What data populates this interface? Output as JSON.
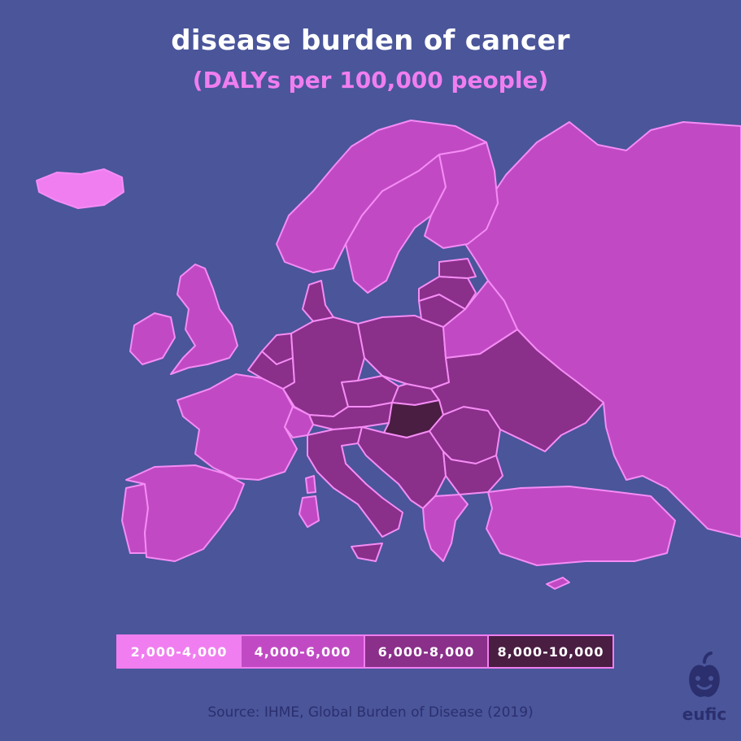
{
  "title": "disease burden of cancer",
  "subtitle": "(DALYs per 100,000 people)",
  "colors": {
    "background": "#4a559a",
    "border": "#f58cf5",
    "band_2000_4000": "#f07ef0",
    "band_4000_6000": "#c14ac4",
    "band_6000_8000": "#8a2f8a",
    "band_8000_10000": "#4a1d42"
  },
  "legend": [
    {
      "label": "2,000-4,000",
      "color": "#f07ef0"
    },
    {
      "label": "4,000-6,000",
      "color": "#c14ac4"
    },
    {
      "label": "6,000-8,000",
      "color": "#8a2f8a"
    },
    {
      "label": "8,000-10,000",
      "color": "#4a1d42"
    }
  ],
  "chart_data": {
    "type": "choropleth",
    "bands": [
      "2,000-4,000",
      "4,000-6,000",
      "6,000-8,000",
      "8,000-10,000"
    ],
    "regions": [
      {
        "name": "iceland",
        "band": "2,000-4,000"
      },
      {
        "name": "russia",
        "band": "4,000-6,000"
      },
      {
        "name": "norway",
        "band": "4,000-6,000"
      },
      {
        "name": "sweden",
        "band": "4,000-6,000"
      },
      {
        "name": "finland",
        "band": "4,000-6,000"
      },
      {
        "name": "united-kingdom",
        "band": "4,000-6,000"
      },
      {
        "name": "ireland",
        "band": "4,000-6,000"
      },
      {
        "name": "france",
        "band": "4,000-6,000"
      },
      {
        "name": "spain",
        "band": "4,000-6,000"
      },
      {
        "name": "portugal",
        "band": "4,000-6,000"
      },
      {
        "name": "turkey",
        "band": "4,000-6,000"
      },
      {
        "name": "belarus",
        "band": "4,000-6,000"
      },
      {
        "name": "greece",
        "band": "4,000-6,000"
      },
      {
        "name": "cyprus",
        "band": "4,000-6,000"
      },
      {
        "name": "estonia",
        "band": "6,000-8,000"
      },
      {
        "name": "latvia",
        "band": "6,000-8,000"
      },
      {
        "name": "lithuania",
        "band": "6,000-8,000"
      },
      {
        "name": "denmark",
        "band": "6,000-8,000"
      },
      {
        "name": "netherlands",
        "band": "6,000-8,000"
      },
      {
        "name": "belgium",
        "band": "6,000-8,000"
      },
      {
        "name": "germany",
        "band": "6,000-8,000"
      },
      {
        "name": "poland",
        "band": "6,000-8,000"
      },
      {
        "name": "czechia",
        "band": "6,000-8,000"
      },
      {
        "name": "slovakia",
        "band": "6,000-8,000"
      },
      {
        "name": "austria",
        "band": "6,000-8,000"
      },
      {
        "name": "italy",
        "band": "6,000-8,000"
      },
      {
        "name": "ukraine",
        "band": "6,000-8,000"
      },
      {
        "name": "romania",
        "band": "6,000-8,000"
      },
      {
        "name": "bulgaria",
        "band": "6,000-8,000"
      },
      {
        "name": "balkans",
        "band": "6,000-8,000"
      },
      {
        "name": "hungary",
        "band": "8,000-10,000"
      }
    ]
  },
  "source": "Source: IHME, Global Burden of Disease (2019)",
  "logo_text": "eufic"
}
